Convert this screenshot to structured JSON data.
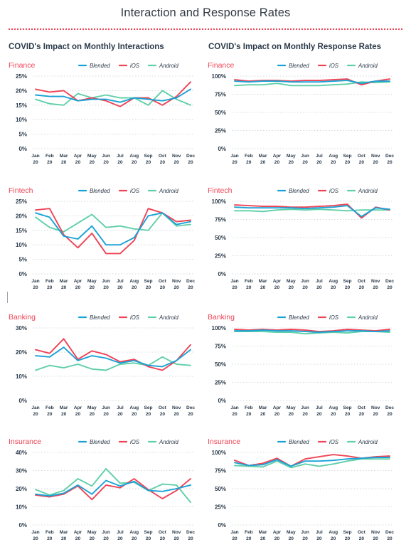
{
  "page": {
    "title": "Interaction and Response Rates",
    "col_left": "COVID's Impact on Monthly Interactions",
    "col_right": "COVID's Impact on Monthly Response Rates"
  },
  "colors": {
    "blended": "#1aa2d6",
    "ios": "#ef4456",
    "android": "#5fcfa8",
    "sector_title": "#ef4456",
    "grid": "#c7ccd2",
    "text": "#2b3a4a"
  },
  "chart_data": [
    {
      "id": "finance-interactions",
      "type": "line",
      "title": "Finance",
      "x_top": [
        "Jan",
        "Feb",
        "Mar",
        "Apr",
        "May",
        "Jun",
        "Jul",
        "Aug",
        "Sep",
        "Oct",
        "Nov",
        "Dec"
      ],
      "x_bottom": [
        "20",
        "20",
        "20",
        "20",
        "20",
        "20",
        "20",
        "20",
        "20",
        "20",
        "20",
        "20"
      ],
      "yticks": [
        0,
        5,
        10,
        15,
        20,
        25
      ],
      "yticklabels": [
        "0%",
        "5%",
        "10%",
        "15%",
        "20%",
        "25%"
      ],
      "ylim": [
        0,
        25
      ],
      "grid": true,
      "legend": "top-right",
      "series": [
        {
          "name": "Blended",
          "color": "#1aa2d6",
          "values": [
            18.5,
            18,
            18,
            16.5,
            17,
            17,
            16,
            17.5,
            17,
            16.5,
            17.5,
            20.5
          ]
        },
        {
          "name": "iOS",
          "color": "#ef4456",
          "values": [
            20.5,
            19.5,
            20,
            16.5,
            17.5,
            16.5,
            14.5,
            17.5,
            17.5,
            15,
            18,
            23
          ]
        },
        {
          "name": "Android",
          "color": "#5fcfa8",
          "values": [
            17,
            15.5,
            15,
            19,
            17.5,
            18.5,
            17.5,
            17.5,
            15,
            20,
            17,
            15
          ]
        }
      ]
    },
    {
      "id": "finance-response",
      "type": "line",
      "title": "Finance",
      "x_top": [
        "Jan",
        "Feb",
        "Mar",
        "Apr",
        "May",
        "Jun",
        "Jul",
        "Aug",
        "Sep",
        "Oct",
        "Nov",
        "Dec"
      ],
      "x_bottom": [
        "20",
        "20",
        "20",
        "20",
        "20",
        "20",
        "20",
        "20",
        "20",
        "20",
        "20",
        "20"
      ],
      "yticks": [
        0,
        25,
        50,
        75,
        100
      ],
      "yticklabels": [
        "0%",
        "25%",
        "50%",
        "75%",
        "100%"
      ],
      "ylim": [
        0,
        100
      ],
      "grid": true,
      "legend": "top-right",
      "series": [
        {
          "name": "Blended",
          "color": "#1aa2d6",
          "values": [
            93,
            92,
            93,
            93,
            92,
            92,
            92,
            93,
            94,
            90,
            93,
            93
          ]
        },
        {
          "name": "iOS",
          "color": "#ef4456",
          "values": [
            95,
            93,
            94,
            94,
            93,
            94,
            94,
            95,
            96,
            88,
            93,
            96
          ]
        },
        {
          "name": "Android",
          "color": "#5fcfa8",
          "values": [
            87,
            88,
            88,
            90,
            87,
            87,
            87,
            88,
            89,
            92,
            91,
            92
          ]
        }
      ]
    },
    {
      "id": "fintech-interactions",
      "type": "line",
      "title": "Fintech",
      "x_top": [
        "Jan",
        "Feb",
        "Mar",
        "Apr",
        "May",
        "Jun",
        "Jul",
        "Aug",
        "Sep",
        "Oct",
        "Nov",
        "Dec"
      ],
      "x_bottom": [
        "20",
        "20",
        "20",
        "20",
        "20",
        "20",
        "20",
        "20",
        "20",
        "20",
        "20",
        "20"
      ],
      "yticks": [
        0,
        5,
        10,
        15,
        20,
        25
      ],
      "yticklabels": [
        "0%",
        "5%",
        "10%",
        "15%",
        "20%",
        "25%"
      ],
      "ylim": [
        0,
        25
      ],
      "grid": true,
      "legend": "top-right",
      "series": [
        {
          "name": "Blended",
          "color": "#1aa2d6",
          "values": [
            21,
            19.5,
            13,
            12,
            16.5,
            10,
            10,
            12.5,
            20,
            21,
            17,
            18
          ]
        },
        {
          "name": "iOS",
          "color": "#ef4456",
          "values": [
            22,
            22.5,
            13.5,
            9,
            14,
            7,
            7,
            11.5,
            22.5,
            21,
            18,
            18.5
          ]
        },
        {
          "name": "Android",
          "color": "#5fcfa8",
          "values": [
            19.5,
            16,
            14.5,
            17.5,
            20.5,
            16,
            16.5,
            15.5,
            15,
            21,
            16.5,
            17
          ]
        }
      ]
    },
    {
      "id": "fintech-response",
      "type": "line",
      "title": "Fintech",
      "x_top": [
        "Jan",
        "Feb",
        "Mar",
        "Apr",
        "May",
        "Jun",
        "Jul",
        "Aug",
        "Sep",
        "Oct",
        "Nov",
        "Dec"
      ],
      "x_bottom": [
        "20",
        "20",
        "20",
        "20",
        "20",
        "20",
        "20",
        "20",
        "20",
        "20",
        "20",
        "20"
      ],
      "yticks": [
        0,
        25,
        50,
        75,
        100
      ],
      "yticklabels": [
        "0%",
        "25%",
        "50%",
        "75%",
        "100%"
      ],
      "ylim": [
        0,
        100
      ],
      "grid": true,
      "legend": "top-right",
      "series": [
        {
          "name": "Blended",
          "color": "#1aa2d6",
          "values": [
            92,
            91,
            91,
            91,
            91,
            90,
            91,
            92,
            94,
            79,
            91,
            89
          ]
        },
        {
          "name": "iOS",
          "color": "#ef4456",
          "values": [
            95,
            94,
            93,
            93,
            92,
            92,
            93,
            94,
            96,
            77,
            92,
            88
          ]
        },
        {
          "name": "Android",
          "color": "#5fcfa8",
          "values": [
            87,
            87,
            86,
            88,
            89,
            88,
            89,
            88,
            87,
            88,
            88,
            88
          ]
        }
      ]
    },
    {
      "id": "banking-interactions",
      "type": "line",
      "title": "Banking",
      "x_top": [
        "Jan",
        "Feb",
        "Mar",
        "Apr",
        "May",
        "Jun",
        "Jul",
        "Aug",
        "Sep",
        "Oct",
        "Nov",
        "Dec"
      ],
      "x_bottom": [
        "20",
        "20",
        "20",
        "20",
        "20",
        "20",
        "20",
        "20",
        "20",
        "20",
        "20",
        "20"
      ],
      "yticks": [
        0,
        10,
        20,
        30
      ],
      "yticklabels": [
        "0%",
        "10%",
        "20%",
        "30%"
      ],
      "ylim": [
        0,
        30
      ],
      "grid": true,
      "legend": "top-right",
      "series": [
        {
          "name": "Blended",
          "color": "#1aa2d6",
          "values": [
            18.5,
            18,
            22,
            16.5,
            18.5,
            17.5,
            15.5,
            16.5,
            14.5,
            14,
            16.5,
            21
          ]
        },
        {
          "name": "iOS",
          "color": "#ef4456",
          "values": [
            21,
            19.5,
            25.5,
            17,
            20.5,
            19,
            16,
            17,
            14,
            12.5,
            16.5,
            23
          ]
        },
        {
          "name": "Android",
          "color": "#5fcfa8",
          "values": [
            12.5,
            14.5,
            13.5,
            15,
            13,
            12.5,
            15,
            15.5,
            14.5,
            18,
            15,
            14.5
          ]
        }
      ]
    },
    {
      "id": "banking-response",
      "type": "line",
      "title": "Banking",
      "x_top": [
        "Jan",
        "Feb",
        "Mar",
        "Apr",
        "May",
        "Jun",
        "Jul",
        "Aug",
        "Sep",
        "Oct",
        "Nov",
        "Dec"
      ],
      "x_bottom": [
        "20",
        "20",
        "20",
        "20",
        "20",
        "20",
        "20",
        "20",
        "20",
        "20",
        "20",
        "20"
      ],
      "yticks": [
        0,
        25,
        50,
        75,
        100
      ],
      "yticklabels": [
        "0%",
        "25%",
        "50%",
        "75%",
        "100%"
      ],
      "ylim": [
        0,
        100
      ],
      "grid": true,
      "legend": "top-right",
      "series": [
        {
          "name": "Blended",
          "color": "#1aa2d6",
          "values": [
            96,
            96,
            97,
            96,
            96,
            95,
            94,
            95,
            96,
            96,
            95,
            96
          ]
        },
        {
          "name": "iOS",
          "color": "#ef4456",
          "values": [
            98,
            97,
            98,
            97,
            98,
            97,
            95,
            96,
            98,
            97,
            96,
            98
          ]
        },
        {
          "name": "Android",
          "color": "#5fcfa8",
          "values": [
            95,
            95,
            95,
            94,
            94,
            92,
            93,
            94,
            93,
            95,
            95,
            94
          ]
        }
      ]
    },
    {
      "id": "insurance-interactions",
      "type": "line",
      "title": "Insurance",
      "x_top": [
        "Jan",
        "Feb",
        "Mar",
        "Apr",
        "May",
        "Jun",
        "Jul",
        "Aug",
        "Sep",
        "Oct",
        "Nov",
        "Dec"
      ],
      "x_bottom": [
        "20",
        "20",
        "20",
        "20",
        "20",
        "20",
        "20",
        "20",
        "20",
        "20",
        "20",
        "20"
      ],
      "yticks": [
        0,
        10,
        20,
        30,
        40
      ],
      "yticklabels": [
        "0%",
        "10%",
        "20%",
        "30%",
        "40%"
      ],
      "ylim": [
        0,
        40
      ],
      "grid": true,
      "legend": "top-right",
      "series": [
        {
          "name": "Blended",
          "color": "#1aa2d6",
          "values": [
            17,
            16,
            17.5,
            22,
            17,
            24.5,
            21.5,
            24,
            19,
            18.5,
            20,
            22
          ]
        },
        {
          "name": "iOS",
          "color": "#ef4456",
          "values": [
            16.5,
            15.5,
            17,
            21.5,
            14,
            22,
            20.5,
            25.5,
            19.5,
            14.5,
            19,
            25.5
          ]
        },
        {
          "name": "Android",
          "color": "#5fcfa8",
          "values": [
            19.5,
            16.5,
            19,
            25.5,
            21.5,
            31,
            23,
            23.5,
            19,
            22.5,
            22,
            12.5
          ]
        }
      ]
    },
    {
      "id": "insurance-response",
      "type": "line",
      "title": "Insurance",
      "x_top": [
        "Jan",
        "Feb",
        "Mar",
        "Apr",
        "May",
        "Jun",
        "Jul",
        "Aug",
        "Sep",
        "Oct",
        "Nov",
        "Dec"
      ],
      "x_bottom": [
        "20",
        "20",
        "20",
        "20",
        "20",
        "20",
        "20",
        "20",
        "20",
        "20",
        "20",
        "20"
      ],
      "yticks": [
        0,
        25,
        50,
        75,
        100
      ],
      "yticklabels": [
        "0%",
        "25%",
        "50%",
        "75%",
        "100%"
      ],
      "ylim": [
        0,
        100
      ],
      "grid": true,
      "legend": "top-right",
      "series": [
        {
          "name": "Blended",
          "color": "#1aa2d6",
          "values": [
            86,
            82,
            83,
            90,
            81,
            88,
            88,
            89,
            91,
            92,
            93,
            93
          ]
        },
        {
          "name": "iOS",
          "color": "#ef4456",
          "values": [
            89,
            82,
            85,
            92,
            81,
            91,
            94,
            97,
            95,
            92,
            94,
            95
          ]
        },
        {
          "name": "Android",
          "color": "#5fcfa8",
          "values": [
            82,
            81,
            80,
            88,
            79,
            84,
            81,
            84,
            88,
            91,
            91,
            91
          ]
        }
      ]
    }
  ]
}
